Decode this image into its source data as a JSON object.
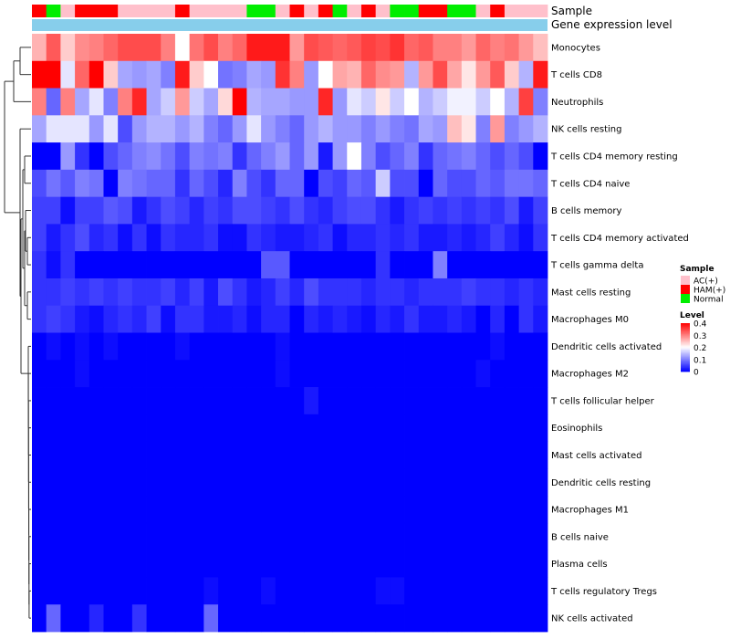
{
  "chart_data": {
    "type": "heatmap",
    "title": "",
    "annotation_labels": {
      "sample": "Sample",
      "gene_expression": "Gene expression level"
    },
    "rows": [
      "Monocytes",
      "T cells CD8",
      "Neutrophils",
      "NK cells resting",
      "T cells CD4 memory resting",
      "T cells CD4 naive",
      "B cells memory",
      "T cells CD4 memory activated",
      "T cells gamma delta",
      "Mast cells resting",
      "Macrophages M0",
      "Dendritic cells activated",
      "Macrophages M2",
      "T cells follicular helper",
      "Eosinophils",
      "Mast cells activated",
      "Dendritic cells resting",
      "Macrophages M1",
      "B cells naive",
      "Plasma cells",
      "T cells regulatory  Tregs",
      "NK cells activated"
    ],
    "sample_groups": [
      "HAM(+)",
      "Normal",
      "AC(+)",
      "HAM(+)",
      "HAM(+)",
      "HAM(+)",
      "AC(+)",
      "AC(+)",
      "AC(+)",
      "AC(+)",
      "HAM(+)",
      "AC(+)",
      "AC(+)",
      "AC(+)",
      "AC(+)",
      "Normal",
      "Normal",
      "AC(+)",
      "HAM(+)",
      "AC(+)",
      "HAM(+)",
      "Normal",
      "AC(+)",
      "HAM(+)",
      "AC(+)",
      "Normal",
      "Normal",
      "HAM(+)",
      "HAM(+)",
      "Normal",
      "Normal",
      "AC(+)",
      "HAM(+)",
      "AC(+)",
      "AC(+)",
      "AC(+)"
    ],
    "values": [
      [
        0.26,
        0.33,
        0.24,
        0.29,
        0.3,
        0.32,
        0.34,
        0.34,
        0.34,
        0.3,
        0.2,
        0.31,
        0.34,
        0.3,
        0.32,
        0.38,
        0.38,
        0.38,
        0.28,
        0.34,
        0.33,
        0.32,
        0.33,
        0.35,
        0.34,
        0.36,
        0.32,
        0.33,
        0.3,
        0.3,
        0.28,
        0.32,
        0.3,
        0.31,
        0.28,
        0.25
      ],
      [
        0.4,
        0.4,
        0.18,
        0.32,
        0.4,
        0.24,
        0.13,
        0.12,
        0.13,
        0.1,
        0.38,
        0.24,
        0.2,
        0.09,
        0.1,
        0.13,
        0.12,
        0.36,
        0.3,
        0.12,
        0.2,
        0.27,
        0.26,
        0.32,
        0.29,
        0.28,
        0.14,
        0.28,
        0.34,
        0.27,
        0.22,
        0.28,
        0.33,
        0.24,
        0.14,
        0.38
      ],
      [
        0.3,
        0.08,
        0.3,
        0.13,
        0.18,
        0.1,
        0.3,
        0.37,
        0.13,
        0.16,
        0.28,
        0.16,
        0.13,
        0.23,
        0.4,
        0.14,
        0.13,
        0.13,
        0.12,
        0.12,
        0.37,
        0.12,
        0.18,
        0.16,
        0.22,
        0.16,
        0.2,
        0.14,
        0.16,
        0.19,
        0.19,
        0.16,
        0.2,
        0.14,
        0.35,
        0.1
      ],
      [
        0.13,
        0.18,
        0.18,
        0.18,
        0.12,
        0.18,
        0.06,
        0.12,
        0.14,
        0.14,
        0.12,
        0.14,
        0.1,
        0.08,
        0.12,
        0.18,
        0.12,
        0.1,
        0.08,
        0.12,
        0.14,
        0.12,
        0.12,
        0.1,
        0.12,
        0.1,
        0.09,
        0.13,
        0.12,
        0.25,
        0.22,
        0.1,
        0.28,
        0.1,
        0.12,
        0.14
      ],
      [
        0.0,
        0.0,
        0.12,
        0.04,
        0.0,
        0.06,
        0.08,
        0.1,
        0.11,
        0.09,
        0.06,
        0.1,
        0.09,
        0.1,
        0.04,
        0.08,
        0.1,
        0.12,
        0.08,
        0.12,
        0.02,
        0.12,
        0.2,
        0.1,
        0.06,
        0.08,
        0.1,
        0.04,
        0.08,
        0.09,
        0.1,
        0.08,
        0.06,
        0.08,
        0.06,
        0.0
      ],
      [
        0.06,
        0.09,
        0.07,
        0.1,
        0.09,
        0.0,
        0.1,
        0.09,
        0.08,
        0.08,
        0.04,
        0.08,
        0.06,
        0.03,
        0.1,
        0.06,
        0.04,
        0.08,
        0.08,
        0.0,
        0.06,
        0.05,
        0.08,
        0.07,
        0.16,
        0.06,
        0.06,
        0.0,
        0.08,
        0.06,
        0.06,
        0.08,
        0.07,
        0.09,
        0.09,
        0.08
      ],
      [
        0.05,
        0.05,
        0.01,
        0.05,
        0.05,
        0.07,
        0.06,
        0.02,
        0.04,
        0.06,
        0.05,
        0.03,
        0.05,
        0.04,
        0.06,
        0.06,
        0.05,
        0.04,
        0.06,
        0.04,
        0.03,
        0.05,
        0.06,
        0.06,
        0.04,
        0.02,
        0.04,
        0.05,
        0.04,
        0.05,
        0.04,
        0.05,
        0.04,
        0.06,
        0.02,
        0.05
      ],
      [
        0.05,
        0.02,
        0.04,
        0.06,
        0.03,
        0.04,
        0.01,
        0.04,
        0.01,
        0.04,
        0.03,
        0.03,
        0.04,
        0.01,
        0.01,
        0.04,
        0.03,
        0.02,
        0.02,
        0.03,
        0.04,
        0.01,
        0.03,
        0.03,
        0.04,
        0.03,
        0.04,
        0.02,
        0.02,
        0.03,
        0.02,
        0.03,
        0.05,
        0.03,
        0.01,
        0.04
      ],
      [
        0.04,
        0.01,
        0.04,
        0.0,
        0.0,
        0.0,
        0.0,
        0.0,
        0.0,
        0.0,
        0.0,
        0.0,
        0.0,
        0.0,
        0.0,
        0.0,
        0.07,
        0.07,
        0.0,
        0.0,
        0.0,
        0.0,
        0.0,
        0.0,
        0.04,
        0.0,
        0.0,
        0.0,
        0.1,
        0.0,
        0.0,
        0.0,
        0.0,
        0.0,
        0.0,
        0.0
      ],
      [
        0.04,
        0.04,
        0.05,
        0.04,
        0.05,
        0.04,
        0.05,
        0.04,
        0.04,
        0.05,
        0.03,
        0.05,
        0.02,
        0.06,
        0.04,
        0.02,
        0.03,
        0.05,
        0.03,
        0.06,
        0.04,
        0.04,
        0.04,
        0.03,
        0.04,
        0.04,
        0.03,
        0.04,
        0.04,
        0.04,
        0.05,
        0.04,
        0.04,
        0.03,
        0.04,
        0.03
      ],
      [
        0.04,
        0.05,
        0.04,
        0.02,
        0.01,
        0.03,
        0.04,
        0.03,
        0.05,
        0.01,
        0.04,
        0.04,
        0.02,
        0.02,
        0.03,
        0.01,
        0.03,
        0.03,
        0.0,
        0.03,
        0.02,
        0.03,
        0.02,
        0.01,
        0.03,
        0.02,
        0.04,
        0.02,
        0.02,
        0.03,
        0.02,
        0.0,
        0.03,
        0.0,
        0.04,
        0.02
      ],
      [
        0.0,
        0.01,
        0.0,
        0.01,
        0.0,
        0.01,
        0.0,
        0.0,
        0.0,
        0.0,
        0.01,
        0.0,
        0.0,
        0.0,
        0.0,
        0.0,
        0.0,
        0.01,
        0.0,
        0.0,
        0.0,
        0.0,
        0.0,
        0.0,
        0.0,
        0.0,
        0.0,
        0.0,
        0.0,
        0.0,
        0.0,
        0.0,
        0.01,
        0.0,
        0.0,
        0.0
      ],
      [
        0.0,
        0.0,
        0.0,
        0.01,
        0.0,
        0.0,
        0.0,
        0.0,
        0.0,
        0.0,
        0.0,
        0.0,
        0.0,
        0.0,
        0.0,
        0.0,
        0.0,
        0.01,
        0.0,
        0.0,
        0.0,
        0.0,
        0.0,
        0.0,
        0.0,
        0.0,
        0.0,
        0.0,
        0.0,
        0.0,
        0.0,
        0.01,
        0.0,
        0.0,
        0.0,
        0.0
      ],
      [
        0.0,
        0.0,
        0.0,
        0.0,
        0.0,
        0.0,
        0.0,
        0.0,
        0.0,
        0.0,
        0.0,
        0.0,
        0.0,
        0.0,
        0.0,
        0.0,
        0.0,
        0.0,
        0.0,
        0.02,
        0.0,
        0.0,
        0.0,
        0.0,
        0.0,
        0.0,
        0.0,
        0.0,
        0.0,
        0.0,
        0.0,
        0.0,
        0.0,
        0.0,
        0.0,
        0.0
      ],
      [
        0,
        0,
        0,
        0,
        0,
        0,
        0,
        0,
        0,
        0,
        0,
        0,
        0,
        0,
        0,
        0,
        0,
        0,
        0,
        0,
        0,
        0,
        0,
        0,
        0,
        0,
        0,
        0,
        0,
        0,
        0,
        0,
        0,
        0,
        0,
        0
      ],
      [
        0,
        0,
        0,
        0,
        0,
        0,
        0,
        0,
        0,
        0,
        0,
        0,
        0,
        0,
        0,
        0,
        0,
        0,
        0,
        0,
        0,
        0,
        0,
        0,
        0,
        0,
        0,
        0,
        0,
        0,
        0,
        0,
        0,
        0,
        0,
        0
      ],
      [
        0,
        0,
        0,
        0,
        0,
        0,
        0,
        0,
        0,
        0,
        0,
        0,
        0,
        0,
        0,
        0,
        0,
        0,
        0,
        0,
        0,
        0,
        0,
        0,
        0,
        0,
        0,
        0,
        0,
        0,
        0,
        0,
        0,
        0,
        0,
        0
      ],
      [
        0,
        0,
        0,
        0,
        0,
        0,
        0,
        0,
        0,
        0,
        0,
        0,
        0,
        0,
        0,
        0,
        0,
        0,
        0,
        0,
        0,
        0,
        0,
        0,
        0,
        0,
        0,
        0,
        0,
        0,
        0,
        0,
        0,
        0,
        0,
        0
      ],
      [
        0,
        0,
        0,
        0,
        0,
        0,
        0,
        0,
        0,
        0,
        0,
        0,
        0,
        0,
        0,
        0,
        0,
        0,
        0,
        0,
        0,
        0,
        0,
        0,
        0,
        0,
        0,
        0,
        0,
        0,
        0,
        0,
        0,
        0,
        0,
        0
      ],
      [
        0,
        0,
        0,
        0,
        0,
        0,
        0,
        0,
        0,
        0,
        0,
        0,
        0,
        0,
        0,
        0,
        0,
        0,
        0,
        0,
        0,
        0,
        0,
        0,
        0,
        0,
        0,
        0,
        0,
        0,
        0,
        0,
        0,
        0,
        0,
        0
      ],
      [
        0.0,
        0.0,
        0.0,
        0.0,
        0.0,
        0.0,
        0.0,
        0.0,
        0.0,
        0.0,
        0.0,
        0.0,
        0.01,
        0.0,
        0.0,
        0.0,
        0.01,
        0.0,
        0.0,
        0.0,
        0.0,
        0.0,
        0.0,
        0.0,
        0.01,
        0.01,
        0.0,
        0.0,
        0.0,
        0.0,
        0.0,
        0.0,
        0.0,
        0.0,
        0.0,
        0.0
      ],
      [
        0.0,
        0.08,
        0.0,
        0.0,
        0.03,
        0.0,
        0.0,
        0.04,
        0.0,
        0.0,
        0.0,
        0.0,
        0.08,
        0.0,
        0.0,
        0.0,
        0.0,
        0.0,
        0.0,
        0.0,
        0.0,
        0.0,
        0.0,
        0.0,
        0.0,
        0.0,
        0.0,
        0.0,
        0.0,
        0.0,
        0.0,
        0.0,
        0.0,
        0.0,
        0.0,
        0.0
      ]
    ],
    "legend": {
      "sample": {
        "title": "Sample",
        "entries": [
          {
            "label": "AC(+)",
            "color": "#FFC0CB"
          },
          {
            "label": "HAM(+)",
            "color": "#FF0000"
          },
          {
            "label": "Normal",
            "color": "#00EE00"
          }
        ]
      },
      "level": {
        "title": "Level",
        "ticks": [
          "0.4",
          "0.3",
          "0.2",
          "0.1",
          "0"
        ],
        "range": [
          0,
          0.4
        ]
      }
    },
    "colors": {
      "low": "#0000FF",
      "mid": "#FFFFFF",
      "high": "#FF0000",
      "gene_expression_bar": "#87CEEB"
    }
  }
}
